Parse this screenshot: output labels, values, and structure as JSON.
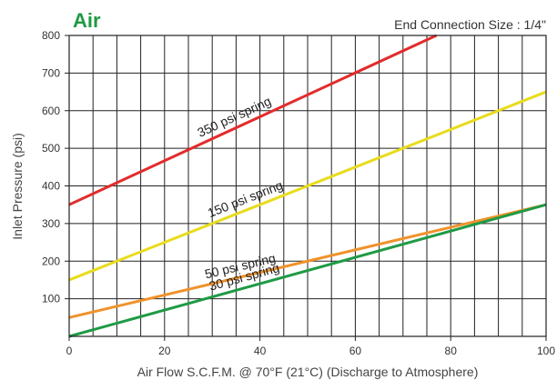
{
  "chart_data": {
    "type": "line",
    "title": "Air",
    "subtitle": "End Connection Size : 1/4\"",
    "xlabel": "Air Flow S.C.F.M. @ 70°F (21°C) (Discharge to Atmosphere)",
    "ylabel": "Inlet Pressure (psi)",
    "xlim": [
      0,
      100
    ],
    "ylim": [
      0,
      800
    ],
    "grid": true,
    "x_ticks": [
      0,
      20,
      40,
      60,
      80,
      100
    ],
    "y_ticks": [
      100,
      200,
      300,
      400,
      500,
      600,
      700,
      800
    ],
    "series": [
      {
        "name": "350 psi spring",
        "color": "#e32b2b",
        "x": [
          0,
          77
        ],
        "y": [
          350,
          800
        ]
      },
      {
        "name": "150 psi spring",
        "color": "#e8dc1c",
        "x": [
          0,
          100
        ],
        "y": [
          150,
          650
        ]
      },
      {
        "name": "50 psi spring",
        "color": "#f0922a",
        "x": [
          0,
          100
        ],
        "y": [
          50,
          350
        ]
      },
      {
        "name": "30 psi spring",
        "color": "#1f9a45",
        "x": [
          0,
          100
        ],
        "y": [
          0,
          350
        ]
      }
    ],
    "title_color": "#1f9a45"
  }
}
